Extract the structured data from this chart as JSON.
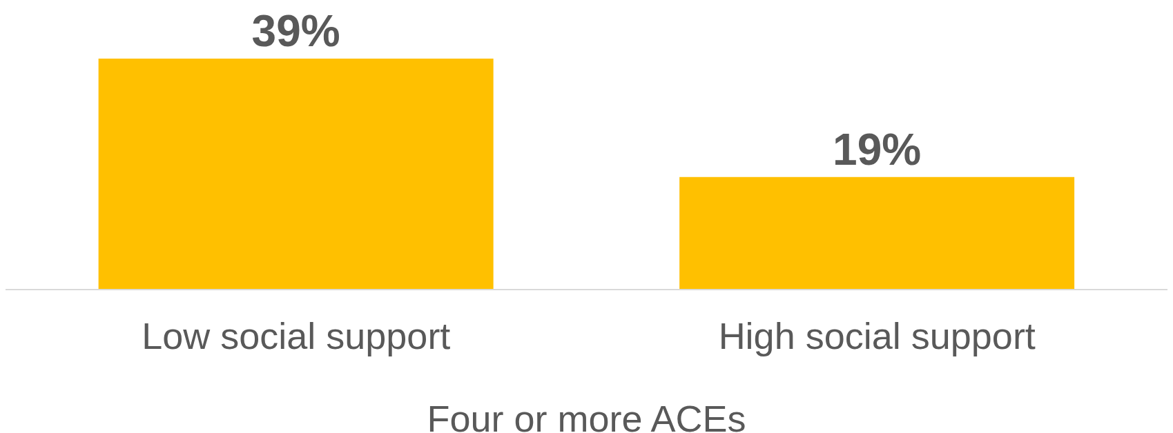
{
  "chart_data": {
    "type": "bar",
    "xlabel": "Four or more ACEs",
    "categories": [
      "Low social support",
      "High social support"
    ],
    "values": [
      39,
      19
    ],
    "color": "#ffc000",
    "value_labels": [
      "39%",
      "19%"
    ]
  }
}
